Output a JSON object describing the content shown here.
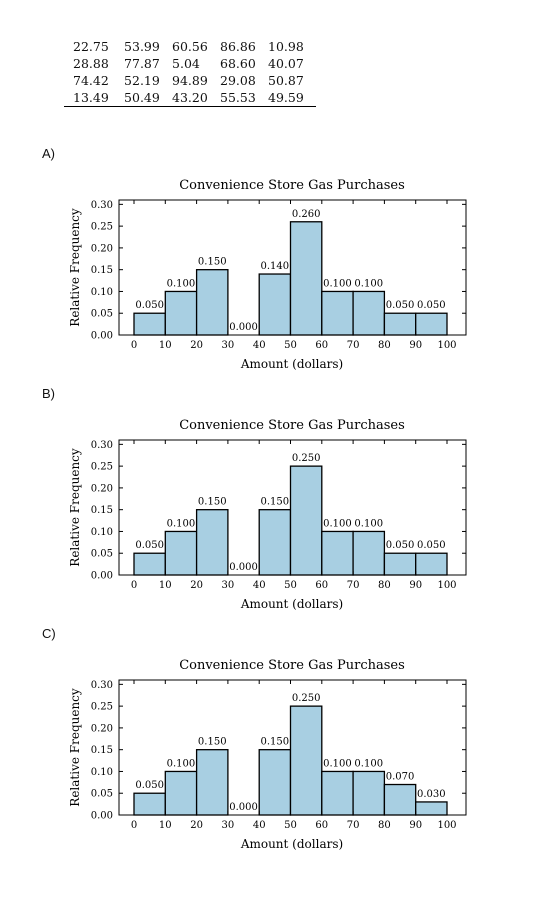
{
  "table": {
    "rows": [
      [
        "22.75",
        "53.99",
        "60.56",
        "86.86",
        "10.98"
      ],
      [
        "28.88",
        "77.87",
        "5.04",
        "68.60",
        "40.07"
      ],
      [
        "74.42",
        "52.19",
        "94.89",
        "29.08",
        "50.87"
      ],
      [
        "13.49",
        "50.49",
        "43.20",
        "55.53",
        "49.59"
      ]
    ]
  },
  "options": [
    {
      "label": "A)"
    },
    {
      "label": "B)"
    },
    {
      "label": "C)"
    }
  ],
  "colors": {
    "bar_fill": "#a8cfe2",
    "bar_edge": "#000000"
  },
  "chart_data": [
    {
      "type": "bar",
      "title": "Convenience Store Gas Purchases",
      "xlabel": "Amount (dollars)",
      "ylabel": "Relative Frequency",
      "bin_edges": [
        0,
        10,
        20,
        30,
        40,
        50,
        60,
        70,
        80,
        90,
        100
      ],
      "values": [
        0.05,
        0.1,
        0.15,
        0.0,
        0.14,
        0.26,
        0.1,
        0.1,
        0.05,
        0.05
      ],
      "value_labels": [
        "0.050",
        "0.100",
        "0.150",
        "0.000",
        "0.140",
        "0.260",
        "0.100",
        "0.100",
        "0.050",
        "0.050"
      ],
      "xticks": [
        "0",
        "10",
        "20",
        "30",
        "40",
        "50",
        "60",
        "70",
        "80",
        "90",
        "100"
      ],
      "yticks": [
        "0.00",
        "0.05",
        "0.10",
        "0.15",
        "0.20",
        "0.25",
        "0.30"
      ],
      "xlim": [
        0,
        105
      ],
      "ylim": [
        0,
        0.31
      ]
    },
    {
      "type": "bar",
      "title": "Convenience Store Gas Purchases",
      "xlabel": "Amount (dollars)",
      "ylabel": "Relative Frequency",
      "bin_edges": [
        0,
        10,
        20,
        30,
        40,
        50,
        60,
        70,
        80,
        90,
        100
      ],
      "values": [
        0.05,
        0.1,
        0.15,
        0.0,
        0.15,
        0.25,
        0.1,
        0.1,
        0.05,
        0.05
      ],
      "value_labels": [
        "0.050",
        "0.100",
        "0.150",
        "0.000",
        "0.150",
        "0.250",
        "0.100",
        "0.100",
        "0.050",
        "0.050"
      ],
      "xticks": [
        "0",
        "10",
        "20",
        "30",
        "40",
        "50",
        "60",
        "70",
        "80",
        "90",
        "100"
      ],
      "yticks": [
        "0.00",
        "0.05",
        "0.10",
        "0.15",
        "0.20",
        "0.25",
        "0.30"
      ],
      "xlim": [
        0,
        105
      ],
      "ylim": [
        0,
        0.31
      ]
    },
    {
      "type": "bar",
      "title": "Convenience Store Gas Purchases",
      "xlabel": "Amount (dollars)",
      "ylabel": "Relative Frequency",
      "bin_edges": [
        0,
        10,
        20,
        30,
        40,
        50,
        60,
        70,
        80,
        90,
        100
      ],
      "values": [
        0.05,
        0.1,
        0.15,
        0.0,
        0.15,
        0.25,
        0.1,
        0.1,
        0.07,
        0.03
      ],
      "value_labels": [
        "0.050",
        "0.100",
        "0.150",
        "0.000",
        "0.150",
        "0.250",
        "0.100",
        "0.100",
        "0.070",
        "0.030"
      ],
      "xticks": [
        "0",
        "10",
        "20",
        "30",
        "40",
        "50",
        "60",
        "70",
        "80",
        "90",
        "100"
      ],
      "yticks": [
        "0.00",
        "0.05",
        "0.10",
        "0.15",
        "0.20",
        "0.25",
        "0.30"
      ],
      "xlim": [
        0,
        105
      ],
      "ylim": [
        0,
        0.31
      ]
    }
  ]
}
